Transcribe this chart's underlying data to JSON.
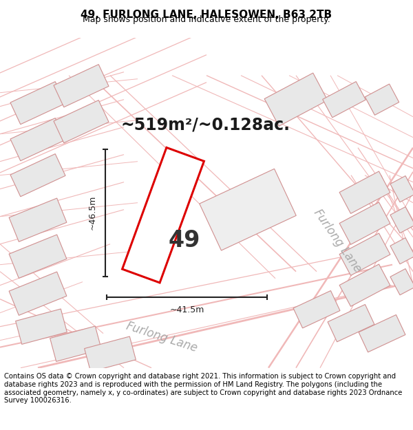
{
  "title_line1": "49, FURLONG LANE, HALESOWEN, B63 2TB",
  "title_line2": "Map shows position and indicative extent of the property.",
  "area_text": "~519m²/~0.128ac.",
  "plot_number": "49",
  "dim_width": "~41.5m",
  "dim_height": "~46.5m",
  "road_label_bottom": "Furlong Lane",
  "road_label_right": "Furlong Lane",
  "footer_text": "Contains OS data © Crown copyright and database right 2021. This information is subject to Crown copyright and database rights 2023 and is reproduced with the permission of HM Land Registry. The polygons (including the associated geometry, namely x, y co-ordinates) are subject to Crown copyright and database rights 2023 Ordnance Survey 100026316.",
  "map_bg": "#f7f7f7",
  "plot_edge": "#dd0000",
  "plot_fill": "#ffffff",
  "road_line_color": "#f0b8b8",
  "road_outline_color": "#e8a0a0",
  "building_fill": "#e8e8e8",
  "building_edge": "#d09090",
  "dim_color": "#222222",
  "road_label_color": "#aaaaaa",
  "title_fontsize": 11,
  "subtitle_fontsize": 9,
  "area_fontsize": 17,
  "plot_num_fontsize": 24,
  "dim_fontsize": 9,
  "road_label_fontsize": 12,
  "footer_fontsize": 7.2
}
